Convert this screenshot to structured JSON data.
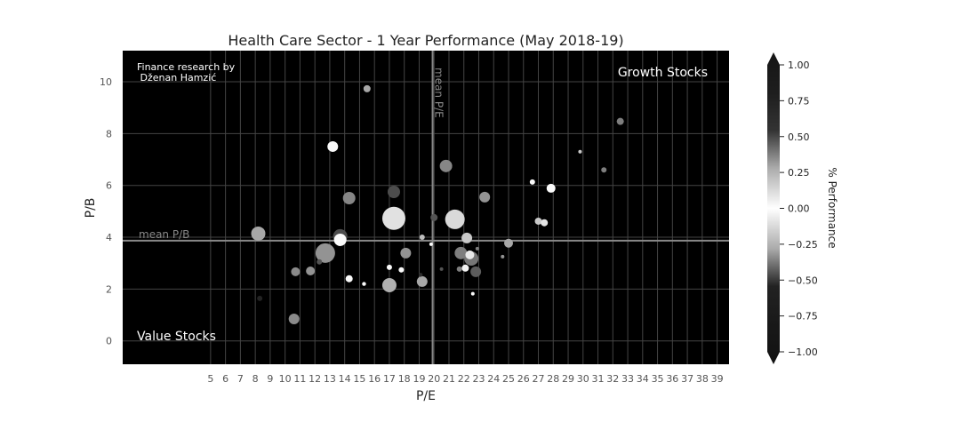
{
  "chart_data": {
    "type": "scatter",
    "title": "Health Care Sector - 1 Year Performance (May 2018-19)",
    "xlabel": "P/E",
    "ylabel": "P/B",
    "xlim": [
      -0.9,
      39.8
    ],
    "ylim": [
      -0.9,
      11.2
    ],
    "xticks": [
      5,
      6,
      7,
      8,
      9,
      10,
      11,
      12,
      13,
      14,
      15,
      16,
      17,
      18,
      19,
      20,
      21,
      22,
      23,
      24,
      25,
      26,
      27,
      28,
      29,
      30,
      31,
      32,
      33,
      34,
      35,
      36,
      37,
      38,
      39
    ],
    "yticks": [
      0,
      2,
      4,
      6,
      8,
      10
    ],
    "grid": true,
    "background": "#000000",
    "mean_pe": 19.9,
    "mean_pb": 3.87,
    "mean_pe_label": "mean P/E",
    "mean_pb_label": "mean P/B",
    "annotations": {
      "credit": [
        "Finance research by",
        " Dženan Hamzić"
      ],
      "growth": "Growth Stocks",
      "value": "Value Stocks"
    },
    "colorbar": {
      "label": "% Performance",
      "colormap": "gray diverging (black at extremes, white at 0)",
      "range": [
        -1,
        1
      ],
      "ticks": [
        "1.00",
        "0.75",
        "0.50",
        "0.25",
        "0.00",
        "−0.25",
        "−0.50",
        "−0.75",
        "−1.00"
      ],
      "tick_values": [
        1,
        0.75,
        0.5,
        0.25,
        0,
        -0.25,
        -0.5,
        -0.75,
        -1
      ]
    },
    "points": [
      {
        "x": 15.5,
        "y": 9.73,
        "s": 16,
        "perf": 0.2
      },
      {
        "x": 13.2,
        "y": 7.5,
        "s": 36,
        "perf": 0.0
      },
      {
        "x": 17.3,
        "y": 5.75,
        "s": 49,
        "perf": 0.42
      },
      {
        "x": 14.3,
        "y": 5.51,
        "s": 49,
        "perf": 0.28
      },
      {
        "x": 17.3,
        "y": 4.73,
        "s": 169,
        "perf": 0.06
      },
      {
        "x": 8.2,
        "y": 4.14,
        "s": 64,
        "perf": 0.2
      },
      {
        "x": 13.7,
        "y": 3.9,
        "s": 49,
        "perf": 0.0
      },
      {
        "x": 13.7,
        "y": 4.04,
        "s": 64,
        "perf": 0.42
      },
      {
        "x": 19.2,
        "y": 4.0,
        "s": 9,
        "perf": 0.15
      },
      {
        "x": 12.7,
        "y": 3.39,
        "s": 121,
        "perf": 0.25
      },
      {
        "x": 18.1,
        "y": 3.39,
        "s": 36,
        "perf": 0.25
      },
      {
        "x": 12.3,
        "y": 3.05,
        "s": 9,
        "perf": 0.4
      },
      {
        "x": 10.7,
        "y": 2.67,
        "s": 25,
        "perf": 0.27
      },
      {
        "x": 11.7,
        "y": 2.7,
        "s": 25,
        "perf": 0.25
      },
      {
        "x": 17.0,
        "y": 2.84,
        "s": 9,
        "perf": 0.0
      },
      {
        "x": 17.8,
        "y": 2.74,
        "s": 9,
        "perf": 0.0
      },
      {
        "x": 14.3,
        "y": 2.4,
        "s": 16,
        "perf": 0.0
      },
      {
        "x": 15.3,
        "y": 2.2,
        "s": 5,
        "perf": 0.0
      },
      {
        "x": 17.0,
        "y": 2.15,
        "s": 64,
        "perf": 0.18
      },
      {
        "x": 19.2,
        "y": 2.29,
        "s": 36,
        "perf": 0.2
      },
      {
        "x": 19.1,
        "y": 2.55,
        "s": 5,
        "perf": 0.5
      },
      {
        "x": 8.3,
        "y": 1.64,
        "s": 9,
        "perf": 0.52
      },
      {
        "x": 10.6,
        "y": 0.85,
        "s": 36,
        "perf": 0.27
      },
      {
        "x": 20.8,
        "y": 6.75,
        "s": 49,
        "perf": 0.28
      },
      {
        "x": 20.0,
        "y": 4.76,
        "s": 16,
        "perf": 0.4
      },
      {
        "x": 21.4,
        "y": 4.69,
        "s": 121,
        "perf": 0.08
      },
      {
        "x": 19.8,
        "y": 3.73,
        "s": 4,
        "perf": 0.0
      },
      {
        "x": 22.2,
        "y": 3.97,
        "s": 36,
        "perf": 0.12
      },
      {
        "x": 25.0,
        "y": 3.77,
        "s": 25,
        "perf": 0.2
      },
      {
        "x": 23.4,
        "y": 5.55,
        "s": 36,
        "perf": 0.25
      },
      {
        "x": 26.6,
        "y": 6.13,
        "s": 9,
        "perf": 0.0
      },
      {
        "x": 27.85,
        "y": 5.89,
        "s": 25,
        "perf": 0.0
      },
      {
        "x": 29.8,
        "y": 7.3,
        "s": 4,
        "perf": 0.12
      },
      {
        "x": 31.4,
        "y": 6.6,
        "s": 9,
        "perf": 0.3
      },
      {
        "x": 32.5,
        "y": 8.47,
        "s": 16,
        "perf": 0.3
      },
      {
        "x": 27.0,
        "y": 4.62,
        "s": 16,
        "perf": 0.12
      },
      {
        "x": 27.4,
        "y": 4.56,
        "s": 16,
        "perf": 0.05
      },
      {
        "x": 21.8,
        "y": 3.39,
        "s": 49,
        "perf": 0.3
      },
      {
        "x": 22.5,
        "y": 3.18,
        "s": 64,
        "perf": 0.32
      },
      {
        "x": 22.4,
        "y": 3.32,
        "s": 25,
        "perf": 0.04
      },
      {
        "x": 22.9,
        "y": 3.56,
        "s": 4,
        "perf": 0.3
      },
      {
        "x": 24.6,
        "y": 3.25,
        "s": 4,
        "perf": 0.25
      },
      {
        "x": 20.5,
        "y": 2.77,
        "s": 4,
        "perf": 0.4
      },
      {
        "x": 21.7,
        "y": 2.77,
        "s": 9,
        "perf": 0.3
      },
      {
        "x": 22.1,
        "y": 2.81,
        "s": 16,
        "perf": 0.02
      },
      {
        "x": 22.8,
        "y": 2.67,
        "s": 36,
        "perf": 0.38
      },
      {
        "x": 22.6,
        "y": 1.82,
        "s": 4,
        "perf": 0.0
      }
    ]
  }
}
